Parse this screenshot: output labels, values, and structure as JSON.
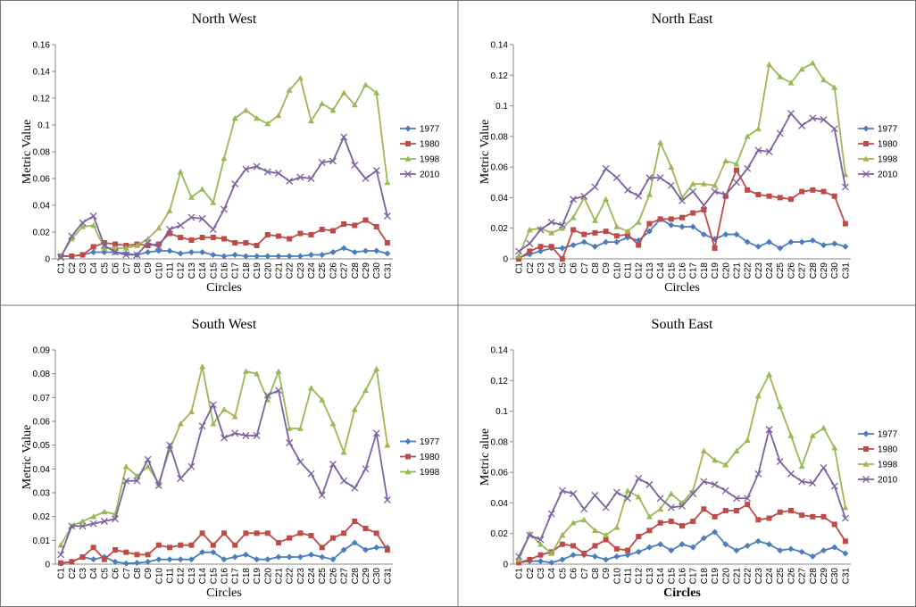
{
  "chart_data": [
    {
      "type": "line",
      "title": "North West",
      "x_label": "Circles",
      "y_label": "Metric Value",
      "categories": [
        "C1",
        "C2",
        "C3",
        "C4",
        "C5",
        "C6",
        "C7",
        "C8",
        "C9",
        "C10",
        "C11",
        "C12",
        "C13",
        "C14",
        "C15",
        "C16",
        "C17",
        "C18",
        "C19",
        "C20",
        "C21",
        "C22",
        "C23",
        "C24",
        "C25",
        "C26",
        "C27",
        "C28",
        "C29",
        "C30",
        "C31"
      ],
      "ylim": [
        0,
        0.16
      ],
      "yticks": [
        0,
        0.02,
        0.04,
        0.06,
        0.08,
        0.1,
        0.12,
        0.14,
        0.16
      ],
      "series": [
        {
          "name": "1977",
          "color": "#4a7ebb",
          "marker": "diamond",
          "values": [
            0.002,
            0.002,
            0.003,
            0.005,
            0.005,
            0.005,
            0.004,
            0.003,
            0.005,
            0.006,
            0.006,
            0.004,
            0.005,
            0.005,
            0.003,
            0.002,
            0.003,
            0.002,
            0.002,
            0.002,
            0.002,
            0.002,
            0.002,
            0.003,
            0.003,
            0.005,
            0.008,
            0.005,
            0.006,
            0.006,
            0.004
          ]
        },
        {
          "name": "1980",
          "color": "#be4b48",
          "marker": "square",
          "values": [
            0.002,
            0.002,
            0.003,
            0.009,
            0.012,
            0.011,
            0.01,
            0.011,
            0.01,
            0.011,
            0.019,
            0.016,
            0.014,
            0.016,
            0.016,
            0.015,
            0.012,
            0.012,
            0.01,
            0.018,
            0.017,
            0.015,
            0.019,
            0.018,
            0.022,
            0.021,
            0.026,
            0.025,
            0.029,
            0.024,
            0.012
          ]
        },
        {
          "name": "1998",
          "color": "#98b954",
          "marker": "triangle",
          "values": [
            0.002,
            0.015,
            0.024,
            0.025,
            0.008,
            0.008,
            0.008,
            0.01,
            0.015,
            0.023,
            0.036,
            0.065,
            0.046,
            0.052,
            0.042,
            0.075,
            0.105,
            0.111,
            0.105,
            0.101,
            0.107,
            0.126,
            0.135,
            0.103,
            0.116,
            0.111,
            0.124,
            0.115,
            0.13,
            0.124,
            0.057
          ]
        },
        {
          "name": "2010",
          "color": "#7d60a0",
          "marker": "x",
          "values": [
            0.001,
            0.017,
            0.027,
            0.032,
            0.01,
            0.005,
            0.003,
            0.003,
            0.012,
            0.009,
            0.022,
            0.025,
            0.031,
            0.03,
            0.022,
            0.037,
            0.056,
            0.067,
            0.069,
            0.065,
            0.064,
            0.058,
            0.061,
            0.06,
            0.072,
            0.073,
            0.091,
            0.07,
            0.06,
            0.066,
            0.032
          ]
        }
      ]
    },
    {
      "type": "line",
      "title": "North East",
      "x_label": "Circles",
      "y_label": "Metric Value",
      "categories": [
        "C1",
        "C2",
        "C3",
        "C4",
        "C5",
        "C6",
        "C7",
        "C8",
        "C9",
        "C10",
        "C11",
        "C12",
        "C13",
        "C14",
        "C15",
        "C16",
        "C17",
        "C18",
        "C19",
        "C20",
        "C21",
        "C22",
        "C23",
        "C24",
        "C25",
        "C26",
        "C27",
        "C28",
        "C29",
        "C30",
        "C31"
      ],
      "ylim": [
        0,
        0.14
      ],
      "yticks": [
        0,
        0.02,
        0.04,
        0.06,
        0.08,
        0.1,
        0.12,
        0.14
      ],
      "series": [
        {
          "name": "1977",
          "color": "#4a7ebb",
          "marker": "diamond",
          "values": [
            0.001,
            0.003,
            0.005,
            0.007,
            0.007,
            0.009,
            0.011,
            0.008,
            0.011,
            0.011,
            0.014,
            0.012,
            0.018,
            0.026,
            0.022,
            0.021,
            0.021,
            0.016,
            0.013,
            0.016,
            0.016,
            0.011,
            0.008,
            0.011,
            0.007,
            0.011,
            0.011,
            0.012,
            0.009,
            0.01,
            0.008
          ]
        },
        {
          "name": "1980",
          "color": "#be4b48",
          "marker": "square",
          "values": [
            0,
            0.005,
            0.008,
            0.008,
            0,
            0.019,
            0.016,
            0.017,
            0.018,
            0.015,
            0.016,
            0.009,
            0.023,
            0.026,
            0.026,
            0.027,
            0.03,
            0.032,
            0.007,
            0.041,
            0.058,
            0.045,
            0.042,
            0.041,
            0.04,
            0.039,
            0.044,
            0.045,
            0.044,
            0.041,
            0.023
          ]
        },
        {
          "name": "1998",
          "color": "#98b954",
          "marker": "triangle",
          "values": [
            0.002,
            0.019,
            0.02,
            0.017,
            0.02,
            0.027,
            0.04,
            0.025,
            0.039,
            0.021,
            0.018,
            0.024,
            0.042,
            0.076,
            0.06,
            0.04,
            0.049,
            0.049,
            0.048,
            0.064,
            0.062,
            0.08,
            0.085,
            0.127,
            0.119,
            0.115,
            0.124,
            0.128,
            0.117,
            0.112,
            0.055
          ]
        },
        {
          "name": "2010",
          "color": "#7d60a0",
          "marker": "x",
          "values": [
            0.005,
            0.01,
            0.019,
            0.024,
            0.022,
            0.039,
            0.041,
            0.047,
            0.059,
            0.053,
            0.045,
            0.041,
            0.053,
            0.053,
            0.048,
            0.038,
            0.044,
            0.035,
            0.044,
            0.042,
            0.05,
            0.059,
            0.071,
            0.07,
            0.082,
            0.095,
            0.087,
            0.092,
            0.091,
            0.085,
            0.047
          ]
        }
      ]
    },
    {
      "type": "line",
      "title": "South West",
      "x_label": "Circles",
      "y_label": "Metric Value",
      "categories": [
        "C1",
        "C2",
        "C3",
        "C4",
        "C5",
        "C6",
        "C7",
        "C8",
        "C9",
        "C10",
        "C11",
        "C12",
        "C13",
        "C14",
        "C15",
        "C16",
        "C17",
        "C18",
        "C19",
        "C20",
        "C21",
        "C22",
        "C23",
        "C24",
        "C25",
        "C26",
        "C27",
        "C28",
        "C29",
        "C30",
        "C31"
      ],
      "ylim": [
        0,
        0.09
      ],
      "yticks": [
        0,
        0.01,
        0.02,
        0.03,
        0.04,
        0.05,
        0.06,
        0.07,
        0.08,
        0.09
      ],
      "series": [
        {
          "name": "1977",
          "color": "#4a7ebb",
          "marker": "diamond",
          "values": [
            0.0003,
            0.001,
            0.003,
            0.002,
            0.003,
            0.001,
            0.0003,
            0.0005,
            0.001,
            0.002,
            0.002,
            0.002,
            0.002,
            0.005,
            0.005,
            0.002,
            0.003,
            0.004,
            0.002,
            0.002,
            0.003,
            0.003,
            0.003,
            0.004,
            0.003,
            0.002,
            0.006,
            0.009,
            0.006,
            0.007,
            0.007
          ]
        },
        {
          "name": "1980",
          "color": "#be4b48",
          "marker": "square",
          "values": [
            0.0005,
            0.001,
            0.003,
            0.007,
            0.002,
            0.006,
            0.005,
            0.004,
            0.004,
            0.008,
            0.007,
            0.008,
            0.008,
            0.013,
            0.008,
            0.013,
            0.008,
            0.013,
            0.013,
            0.013,
            0.009,
            0.011,
            0.013,
            0.012,
            0.007,
            0.011,
            0.013,
            0.018,
            0.015,
            0.013,
            0.006
          ]
        },
        {
          "name": "1998",
          "color": "#98b954",
          "marker": "triangle",
          "values": [
            0.008,
            0.016,
            0.018,
            0.02,
            0.022,
            0.021,
            0.041,
            0.037,
            0.041,
            0.034,
            0.048,
            0.059,
            0.064,
            0.083,
            0.059,
            0.065,
            0.062,
            0.081,
            0.08,
            0.069,
            0.081,
            0.057,
            0.057,
            0.074,
            0.069,
            0.059,
            0.047,
            0.065,
            0.073,
            0.082,
            0.05
          ]
        },
        {
          "color": "#7d60a0",
          "marker": "x",
          "values": [
            0.004,
            0.016,
            0.016,
            0.017,
            0.018,
            0.019,
            0.035,
            0.035,
            0.044,
            0.033,
            0.05,
            0.036,
            0.041,
            0.058,
            0.067,
            0.053,
            0.055,
            0.054,
            0.054,
            0.071,
            0.073,
            0.051,
            0.043,
            0.038,
            0.029,
            0.042,
            0.035,
            0.032,
            0.04,
            0.055,
            0.027
          ]
        }
      ]
    },
    {
      "type": "line",
      "title": "South East",
      "x_label": "Circles",
      "y_label": "Metric alue",
      "categories": [
        "C1",
        "C2",
        "C3",
        "C4",
        "C5",
        "C6",
        "C7",
        "C8",
        "C9",
        "C10",
        "C11",
        "C12",
        "C13",
        "C14",
        "C15",
        "C16",
        "C17",
        "C18",
        "C19",
        "C20",
        "C21",
        "C22",
        "C23",
        "C24",
        "C25",
        "C26",
        "C27",
        "C28",
        "C29",
        "C30",
        "C31"
      ],
      "ylim": [
        0,
        0.14
      ],
      "yticks": [
        0,
        0.02,
        0.04,
        0.06,
        0.08,
        0.1,
        0.12,
        0.14
      ],
      "series": [
        {
          "name": "1977",
          "color": "#4a7ebb",
          "marker": "diamond",
          "values": [
            0.001,
            0.002,
            0.002,
            0.001,
            0.003,
            0.006,
            0.006,
            0.005,
            0.003,
            0.005,
            0.006,
            0.008,
            0.011,
            0.013,
            0.009,
            0.013,
            0.011,
            0.017,
            0.021,
            0.013,
            0.009,
            0.012,
            0.015,
            0.013,
            0.009,
            0.01,
            0.008,
            0.005,
            0.009,
            0.011,
            0.007
          ]
        },
        {
          "name": "1980",
          "color": "#be4b48",
          "marker": "square",
          "values": [
            0.001,
            0.003,
            0.006,
            0.008,
            0.013,
            0.012,
            0.007,
            0.012,
            0.016,
            0.01,
            0.009,
            0.018,
            0.022,
            0.027,
            0.028,
            0.025,
            0.028,
            0.036,
            0.031,
            0.035,
            0.035,
            0.039,
            0.029,
            0.03,
            0.034,
            0.035,
            0.032,
            0.031,
            0.031,
            0.026,
            0.015
          ]
        },
        {
          "name": "1998",
          "color": "#98b954",
          "marker": "triangle",
          "values": [
            0.003,
            0.02,
            0.013,
            0.007,
            0.019,
            0.027,
            0.029,
            0.022,
            0.019,
            0.024,
            0.048,
            0.044,
            0.031,
            0.036,
            0.046,
            0.04,
            0.048,
            0.074,
            0.068,
            0.065,
            0.074,
            0.081,
            0.11,
            0.124,
            0.103,
            0.084,
            0.064,
            0.084,
            0.089,
            0.076,
            0.037
          ]
        },
        {
          "name": "2010",
          "color": "#7d60a0",
          "marker": "x",
          "values": [
            0.005,
            0.019,
            0.016,
            0.033,
            0.048,
            0.046,
            0.036,
            0.045,
            0.037,
            0.047,
            0.043,
            0.056,
            0.052,
            0.043,
            0.037,
            0.038,
            0.046,
            0.054,
            0.052,
            0.048,
            0.043,
            0.043,
            0.059,
            0.088,
            0.067,
            0.059,
            0.054,
            0.053,
            0.063,
            0.051,
            0.03
          ]
        }
      ]
    }
  ]
}
